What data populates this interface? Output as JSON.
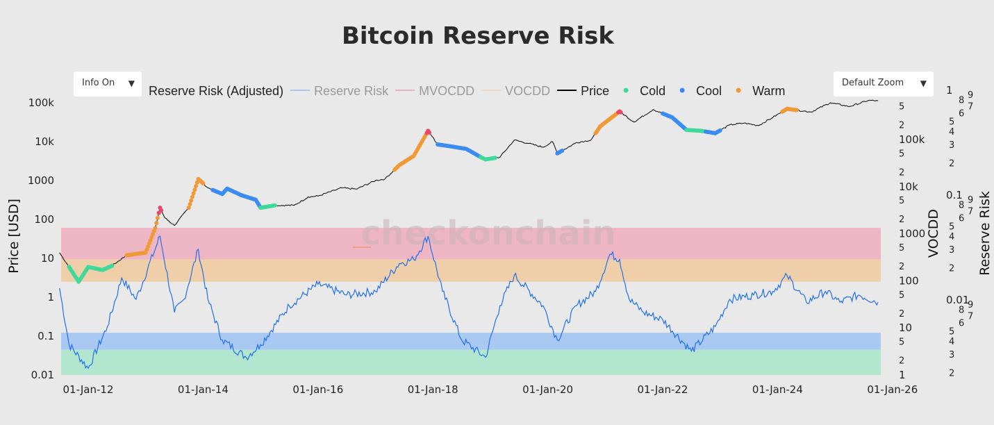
{
  "title": "Bitcoin Reserve Risk",
  "watermark": "checkonchain",
  "controls": {
    "info_dropdown": "Info On",
    "zoom_dropdown": "Default Zoom",
    "arrow": "▼"
  },
  "legend": [
    {
      "label": "Reserve Risk (Adjusted)",
      "type": "line",
      "color": "#1f6feb",
      "hidden": false
    },
    {
      "label": "Reserve Risk",
      "type": "line",
      "color": "#a9c4ee",
      "hidden": true
    },
    {
      "label": "MVOCDD",
      "type": "line",
      "color": "#eab4c1",
      "hidden": true
    },
    {
      "label": "VOCDD",
      "type": "line",
      "color": "#f1d6c2",
      "hidden": true
    },
    {
      "label": "Price",
      "type": "line",
      "color": "#000000",
      "hidden": false
    },
    {
      "label": "Cold",
      "type": "dot",
      "color": "#3fd99a",
      "hidden": false
    },
    {
      "label": "Cool",
      "type": "dot",
      "color": "#3b8cf2",
      "hidden": false
    },
    {
      "label": "Warm",
      "type": "dot",
      "color": "#f09a35",
      "hidden": false
    }
  ],
  "chart_data": {
    "type": "line",
    "title": "Bitcoin Reserve Risk",
    "x_axis": {
      "type": "date",
      "range": [
        "2011-07",
        "2025-10"
      ],
      "tick_labels": [
        "01-Jan-12",
        "01-Jan-14",
        "01-Jan-16",
        "01-Jan-18",
        "01-Jan-20",
        "01-Jan-22",
        "01-Jan-24",
        "01-Jan-26"
      ],
      "tick_dates": [
        "2012-01-01",
        "2014-01-01",
        "2016-01-01",
        "2018-01-01",
        "2020-01-01",
        "2022-01-01",
        "2024-01-01",
        "2026-01-01"
      ]
    },
    "y_axis_price": {
      "label": "Price [USD]",
      "scale": "log",
      "range": [
        0.01,
        200000
      ],
      "tick_labels": [
        "100k",
        "10k",
        "1000",
        "100",
        "10",
        "1",
        "0.1",
        "0.01"
      ],
      "tick_values": [
        100000,
        10000,
        1000,
        100,
        10,
        1,
        0.1,
        0.01
      ]
    },
    "y_axis_vocdd": {
      "label": "VOCDD",
      "scale": "log",
      "range": [
        1,
        1000000
      ],
      "major_labels": [
        "1",
        "10",
        "100",
        "1000",
        "10k",
        "100k"
      ],
      "minor_labels": [
        "2",
        "5"
      ]
    },
    "y_axis_reserve_risk": {
      "label": "Reserve Risk",
      "scale": "log",
      "range": [
        0.0019,
        1
      ],
      "major_labels": [
        "1",
        "0.1",
        "0.01"
      ],
      "minor_labels": [
        "2",
        "3",
        "4",
        "5",
        "6",
        "7",
        "8",
        "9"
      ]
    },
    "grid": false,
    "legend_position": "top",
    "bands_reserve_risk": [
      {
        "from": 0.024,
        "to": 0.048,
        "color": "#eeb6c4"
      },
      {
        "from": 0.0147,
        "to": 0.024,
        "color": "#efcfaa"
      },
      {
        "from": 0.0033,
        "to": 0.0048,
        "color": "#a9c9f2"
      },
      {
        "from": 0.0019,
        "to": 0.0033,
        "color": "#b3e6cf"
      }
    ],
    "series": [
      {
        "name": "Price",
        "axis": "price",
        "color": "#000000",
        "points": [
          [
            "2011-07",
            14
          ],
          [
            "2011-09",
            6
          ],
          [
            "2011-11",
            2.5
          ],
          [
            "2012-01",
            6
          ],
          [
            "2012-04",
            5
          ],
          [
            "2012-06",
            6.5
          ],
          [
            "2012-09",
            12
          ],
          [
            "2013-01",
            14
          ],
          [
            "2013-03",
            60
          ],
          [
            "2013-04",
            200
          ],
          [
            "2013-05",
            110
          ],
          [
            "2013-07",
            70
          ],
          [
            "2013-10",
            200
          ],
          [
            "2013-12",
            1100
          ],
          [
            "2014-02",
            650
          ],
          [
            "2014-05",
            450
          ],
          [
            "2014-06",
            620
          ],
          [
            "2014-09",
            420
          ],
          [
            "2014-12",
            320
          ],
          [
            "2015-01",
            200
          ],
          [
            "2015-04",
            230
          ],
          [
            "2015-08",
            230
          ],
          [
            "2015-11",
            380
          ],
          [
            "2016-01",
            400
          ],
          [
            "2016-06",
            650
          ],
          [
            "2016-09",
            600
          ],
          [
            "2017-01",
            1000
          ],
          [
            "2017-03",
            1100
          ],
          [
            "2017-06",
            2500
          ],
          [
            "2017-09",
            4300
          ],
          [
            "2017-12",
            19000
          ],
          [
            "2018-02",
            8500
          ],
          [
            "2018-05",
            7500
          ],
          [
            "2018-08",
            6500
          ],
          [
            "2018-11",
            4000
          ],
          [
            "2018-12",
            3500
          ],
          [
            "2019-03",
            4000
          ],
          [
            "2019-06",
            11000
          ],
          [
            "2019-09",
            9000
          ],
          [
            "2019-12",
            7200
          ],
          [
            "2020-02",
            10000
          ],
          [
            "2020-03",
            5000
          ],
          [
            "2020-07",
            9500
          ],
          [
            "2020-10",
            11000
          ],
          [
            "2020-12",
            25000
          ],
          [
            "2021-04",
            60000
          ],
          [
            "2021-07",
            32000
          ],
          [
            "2021-11",
            67000
          ],
          [
            "2022-03",
            42000
          ],
          [
            "2022-06",
            20000
          ],
          [
            "2022-09",
            19000
          ],
          [
            "2022-12",
            16500
          ],
          [
            "2023-03",
            27000
          ],
          [
            "2023-06",
            30000
          ],
          [
            "2023-09",
            26000
          ],
          [
            "2023-12",
            42000
          ],
          [
            "2024-03",
            70000
          ],
          [
            "2024-08",
            58000
          ],
          [
            "2024-12",
            100000
          ],
          [
            "2025-04",
            80000
          ],
          [
            "2025-08",
            115000
          ],
          [
            "2025-10",
            112000
          ]
        ]
      },
      {
        "name": "Reserve Risk (Adjusted)",
        "axis": "reserve_risk",
        "color": "#1f6feb",
        "points": [
          [
            "2011-07",
            0.0128
          ],
          [
            "2011-09",
            0.0037
          ],
          [
            "2012-01",
            0.0022
          ],
          [
            "2012-05",
            0.0055
          ],
          [
            "2012-08",
            0.016
          ],
          [
            "2012-11",
            0.01
          ],
          [
            "2013-04",
            0.04
          ],
          [
            "2013-07",
            0.0075
          ],
          [
            "2013-09",
            0.01
          ],
          [
            "2013-12",
            0.03
          ],
          [
            "2014-02",
            0.01
          ],
          [
            "2014-05",
            0.0041
          ],
          [
            "2014-10",
            0.0028
          ],
          [
            "2015-01",
            0.0037
          ],
          [
            "2015-07",
            0.0087
          ],
          [
            "2016-01",
            0.0139
          ],
          [
            "2016-07",
            0.011
          ],
          [
            "2017-01",
            0.0119
          ],
          [
            "2017-06",
            0.022
          ],
          [
            "2017-09",
            0.024
          ],
          [
            "2017-12",
            0.04
          ],
          [
            "2018-03",
            0.0119
          ],
          [
            "2018-07",
            0.0041
          ],
          [
            "2018-12",
            0.0028
          ],
          [
            "2019-03",
            0.0087
          ],
          [
            "2019-06",
            0.017
          ],
          [
            "2019-12",
            0.0087
          ],
          [
            "2020-03",
            0.0041
          ],
          [
            "2020-07",
            0.0087
          ],
          [
            "2020-11",
            0.0119
          ],
          [
            "2021-02",
            0.027
          ],
          [
            "2021-04",
            0.024
          ],
          [
            "2021-06",
            0.01
          ],
          [
            "2021-09",
            0.0075
          ],
          [
            "2022-01",
            0.0064
          ],
          [
            "2022-07",
            0.0032
          ],
          [
            "2022-12",
            0.0055
          ],
          [
            "2023-03",
            0.01
          ],
          [
            "2023-08",
            0.011
          ],
          [
            "2023-12",
            0.0119
          ],
          [
            "2024-03",
            0.0168
          ],
          [
            "2024-07",
            0.0094
          ],
          [
            "2024-11",
            0.0119
          ],
          [
            "2025-02",
            0.0094
          ],
          [
            "2025-06",
            0.011
          ],
          [
            "2025-10",
            0.0094
          ]
        ]
      }
    ],
    "regimes": [
      {
        "name": "Cold",
        "from": "2011-09",
        "to": "2012-05"
      },
      {
        "name": "Warm",
        "from": "2012-09",
        "to": "2013-03"
      },
      {
        "name": "Warm",
        "from": "2013-10",
        "to": "2013-12"
      },
      {
        "name": "Cool",
        "from": "2014-03",
        "to": "2014-12"
      },
      {
        "name": "Cold",
        "from": "2015-01",
        "to": "2015-03"
      },
      {
        "name": "Warm",
        "from": "2017-05",
        "to": "2017-11"
      },
      {
        "name": "Cool",
        "from": "2018-02",
        "to": "2018-10"
      },
      {
        "name": "Cold",
        "from": "2018-11",
        "to": "2019-01"
      },
      {
        "name": "Cool",
        "from": "2020-03",
        "to": "2020-03"
      },
      {
        "name": "Warm",
        "from": "2020-11",
        "to": "2021-03"
      },
      {
        "name": "Cool",
        "from": "2022-01",
        "to": "2022-05"
      },
      {
        "name": "Cold",
        "from": "2022-06",
        "to": "2022-09"
      },
      {
        "name": "Cool",
        "from": "2022-10",
        "to": "2022-12"
      },
      {
        "name": "Warm",
        "from": "2024-02",
        "to": "2024-04"
      }
    ],
    "peaks": {
      "color": "#e8486b",
      "dates": [
        "2013-04",
        "2017-12",
        "2021-04"
      ]
    }
  }
}
